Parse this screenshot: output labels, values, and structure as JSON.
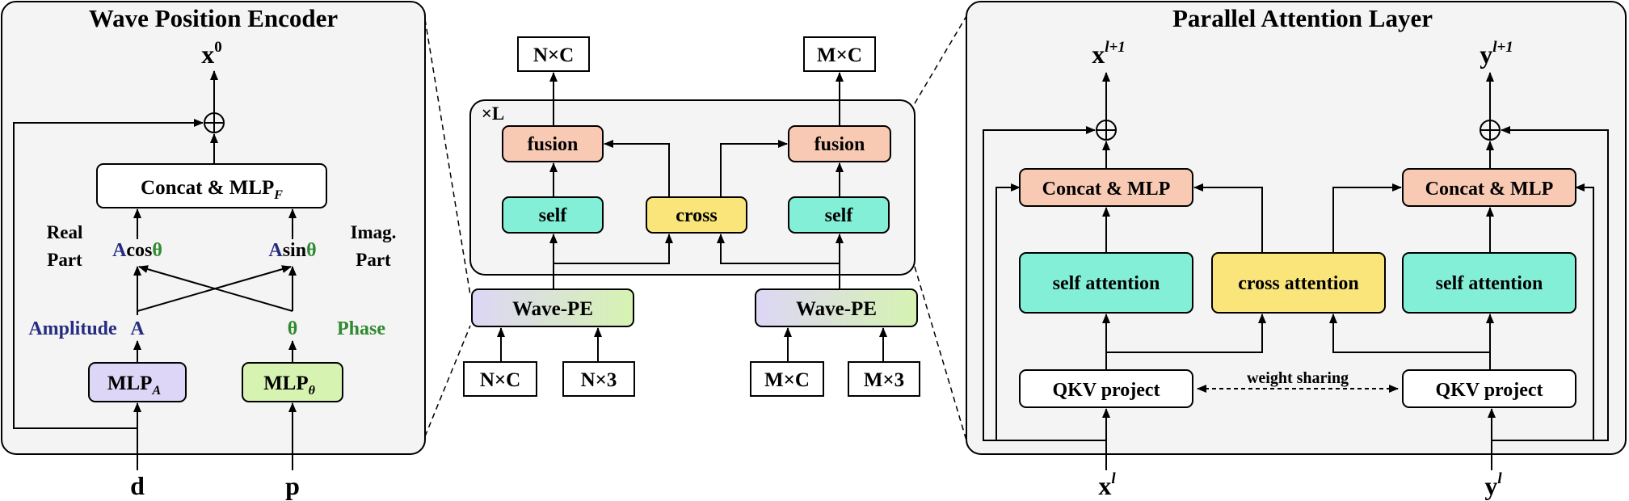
{
  "colors": {
    "panel_bg": "#f4f4f4",
    "purple": "#ddd6f6",
    "light_green": "#d6f3b1",
    "peach": "#f8c9b3",
    "cyan": "#84efd7",
    "yellow": "#fae57a",
    "amplitude_text": "#262c80",
    "phase_text": "#2f8a2f"
  },
  "wpe": {
    "title": "Wave Position Encoder",
    "x_out": "x",
    "x_out_sup": "0",
    "concat_label": "Concat & MLP",
    "concat_sub": "F",
    "real_label_1": "Real",
    "real_label_2": "Part",
    "imag_label_1": "Imag.",
    "imag_label_2": "Part",
    "acos_A": "A",
    "acos_cos": "cos",
    "acos_theta": "θ",
    "asin_A": "A",
    "asin_sin": "sin",
    "asin_theta": "θ",
    "amplitude_label": "Amplitude",
    "amplitude_symbol": "A",
    "theta_symbol": "θ",
    "phase_label": "Phase",
    "mlp_a": "MLP",
    "mlp_a_sub": "A",
    "mlp_theta": "MLP",
    "mlp_theta_sub": "θ",
    "input_d": "d",
    "input_p": "p"
  },
  "middle": {
    "repeat_label": "×L",
    "out_left": "N×C",
    "out_right": "M×C",
    "fusion_left": "fusion",
    "fusion_right": "fusion",
    "self_left": "self",
    "self_right": "self",
    "cross": "cross",
    "wavepe_left": "Wave-PE",
    "wavepe_right": "Wave-PE",
    "in_nc": "N×C",
    "in_n3": "N×3",
    "in_mc": "M×C",
    "in_m3": "M×3"
  },
  "pal": {
    "title": "Parallel Attention Layer",
    "x_out": "x",
    "x_out_sup": "l+1",
    "y_out": "y",
    "y_out_sup": "l+1",
    "concat_left": "Concat & MLP",
    "concat_right": "Concat & MLP",
    "self_attn_left": "self attention",
    "cross_attn": "cross attention",
    "self_attn_right": "self attention",
    "qkv_left": "QKV project",
    "qkv_right": "QKV project",
    "weight_sharing": "weight sharing",
    "x_in": "x",
    "x_in_sup": "l",
    "y_in": "y",
    "y_in_sup": "l"
  }
}
